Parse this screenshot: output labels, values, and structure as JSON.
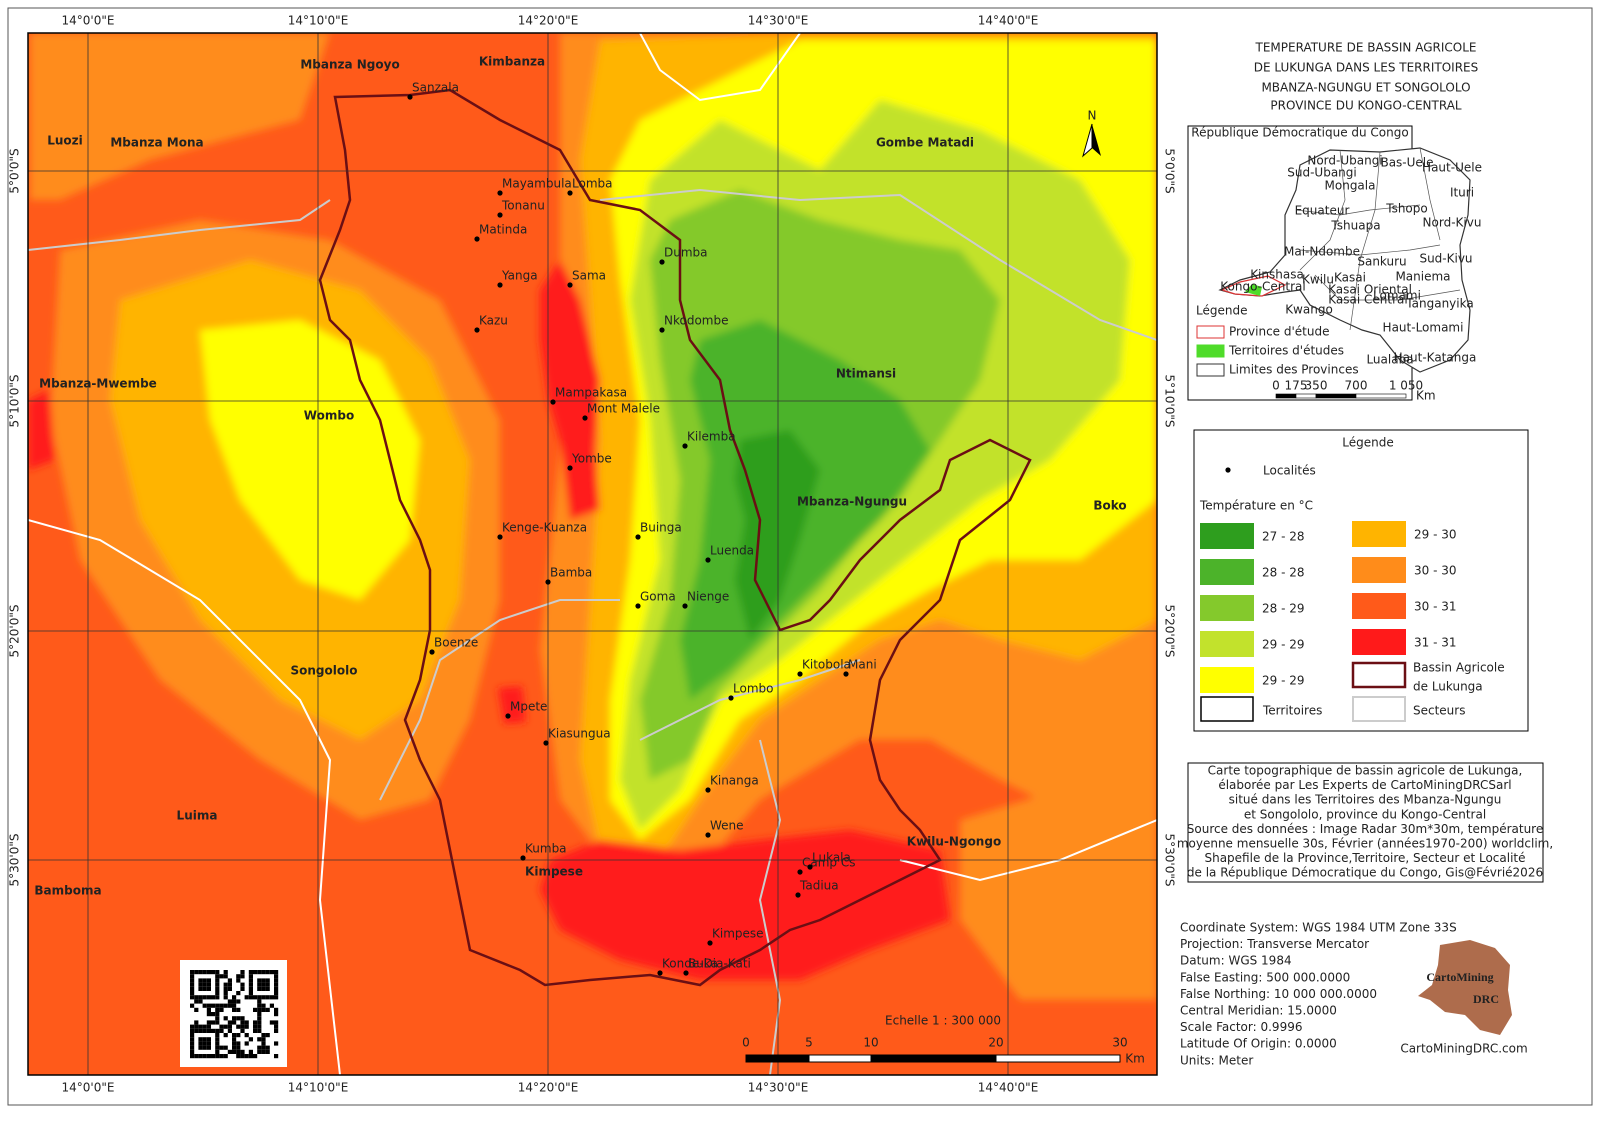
{
  "map": {
    "title_lines": [
      "TEMPERATURE DE BASSIN AGRICOLE",
      "DE LUKUNGA DANS LES TERRITOIRES",
      "MBANZA-NGUNGU ET SONGOLOLO",
      "PROVINCE DU KONGO-CENTRAL"
    ],
    "graticule_lon": [
      "14°0'0\"E",
      "14°10'0\"E",
      "14°20'0\"E",
      "14°30'0\"E",
      "14°40'0\"E"
    ],
    "graticule_lat": [
      "5°0'0\"S",
      "5°10'0\"S",
      "5°20'0\"S",
      "5°30'0\"S"
    ],
    "territories": [
      "Mbanza Ngoyo",
      "Kimbanza",
      "Luozi",
      "Mbanza Mona",
      "Gombe Matadi",
      "Mbanza-Mwembe",
      "Wombo",
      "Ntimansi",
      "Mbanza-Ngungu",
      "Boko",
      "Songololo",
      "Luima",
      "Kimpese",
      "Kwilu-Ngongo",
      "Bamboma"
    ],
    "localities": [
      "Sanzala",
      "Mayambula",
      "Lomba",
      "Tonanu",
      "Matinda",
      "Yanga",
      "Sama",
      "Kazu",
      "Dumba",
      "Nkodombe",
      "Mampakasa",
      "Mont Malele",
      "Kilemba",
      "Yombe",
      "Kenge-Kuanza",
      "Buinga",
      "Luenda",
      "Bamba",
      "Goma",
      "Nienge",
      "Boenze",
      "Kitobola",
      "Mani",
      "Lombo",
      "Mpete",
      "Kiasungua",
      "Kinanga",
      "Wene",
      "Kumba",
      "Camp Cs",
      "Lukala",
      "Tadiua",
      "Kimpese",
      "Konde-Dia-Kati",
      "Buka"
    ],
    "north": "N",
    "scale_text": "Echelle 1 : 300 000",
    "scale_ticks": [
      "0",
      "5",
      "10",
      "20",
      "30"
    ],
    "scale_unit": "Km"
  },
  "inset": {
    "title": "République Démocratique du Congo",
    "provinces": [
      "Nord-Ubangi",
      "Bas-Uele",
      "Haut-Uele",
      "Sud-Ubangi",
      "Mongala",
      "Ituri",
      "Equateur",
      "Tshopo",
      "Nord-Kivu",
      "Tshuapa",
      "Mai-Ndombe",
      "Sankuru",
      "Sud-Kivu",
      "Kinshasa",
      "Kasai",
      "Maniema",
      "Kwilu",
      "Kongo-Central",
      "Kasai Oriental",
      "Lomami",
      "Kasai Central",
      "Tanganyika",
      "Kwango",
      "Haut-Lomami",
      "Lualaba",
      "Haut-Katanga"
    ],
    "legend_title": "Légende",
    "legend_items": [
      "Province d'étude",
      "Territoires d'études",
      "Limites des Provinces"
    ],
    "scale_ticks": [
      "0",
      "175",
      "350",
      "700",
      "1 050"
    ],
    "scale_unit": "Km"
  },
  "legend": {
    "title": "Légende",
    "localities": "Localités",
    "temperature_title": "Température en °C",
    "classes": [
      {
        "label": "27 - 28",
        "color": "#2e9e1e"
      },
      {
        "label": "28 - 28",
        "color": "#4cb32a"
      },
      {
        "label": "28 - 29",
        "color": "#84c92c"
      },
      {
        "label": "29 - 29",
        "color": "#c2e22c"
      },
      {
        "label": "29 - 29",
        "color": "#ffff00"
      },
      {
        "label": "29 - 30",
        "color": "#ffb400"
      },
      {
        "label": "30 - 30",
        "color": "#ff8c1a"
      },
      {
        "label": "30 - 31",
        "color": "#ff5a1a"
      },
      {
        "label": "31 - 31",
        "color": "#ff1a1a"
      }
    ],
    "basin": [
      "Bassin Agricole",
      "de Lukunga"
    ],
    "territories": "Territoires",
    "sectors": "Secteurs"
  },
  "description": [
    "Carte topographique de bassin agricole de Lukunga,",
    "élaborée par Les Experts de CartoMiningDRCSarl",
    "situé dans les Territoires des Mbanza-Ngungu",
    "et Songololo, province du Kongo-Central",
    "Source des données : Image Radar 30m*30m, température",
    "moyenne mensuelle 30s, Février (années1970-200) worldclim,",
    "Shapefile  de la Province,Territoire, Secteur et Localité",
    "de la République Démocratique du Congo, Gis@Févrié2026"
  ],
  "projection": [
    "Coordinate System: WGS 1984 UTM Zone 33S",
    "Projection: Transverse Mercator",
    "Datum: WGS 1984",
    "False Easting: 500 000.0000",
    "False Northing: 10 000 000.0000",
    "Central Meridian: 15.0000",
    "Scale Factor: 0.9996",
    "Latitude Of Origin: 0.0000",
    "Units: Meter"
  ],
  "logo": {
    "name": "CartoMining",
    "suffix": "DRC",
    "url": "CartoMiningDRC.com"
  }
}
